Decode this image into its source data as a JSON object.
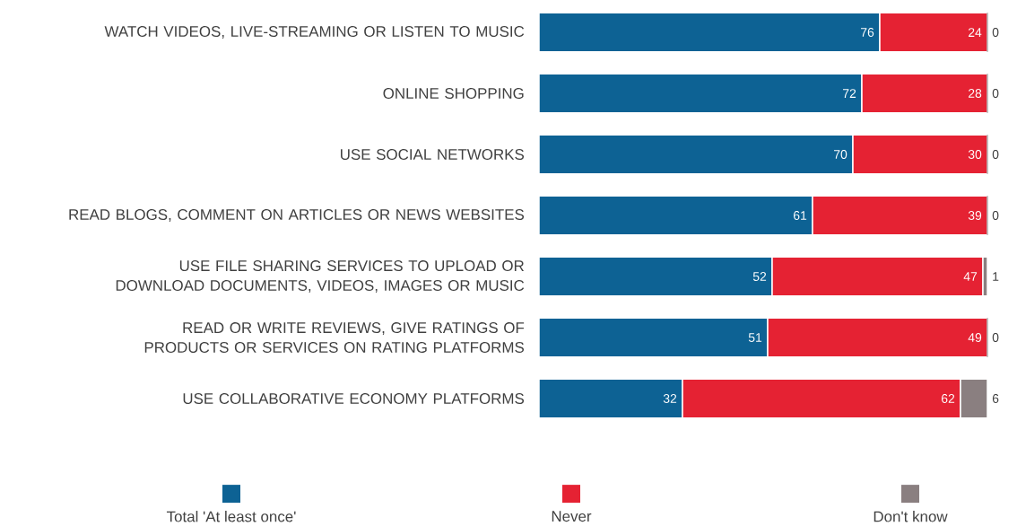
{
  "chart_data": {
    "type": "bar",
    "orientation": "horizontal",
    "stacked": true,
    "data_labels": true,
    "legend": "bottom",
    "categories": [
      "WATCH VIDEOS, LIVE-STREAMING OR LISTEN TO MUSIC",
      "ONLINE SHOPPING",
      "USE SOCIAL NETWORKS",
      "READ BLOGS, COMMENT ON ARTICLES OR NEWS WEBSITES",
      "USE FILE SHARING SERVICES TO UPLOAD OR DOWNLOAD DOCUMENTS, VIDEOS, IMAGES OR MUSIC",
      "READ OR WRITE REVIEWS, GIVE RATINGS OF PRODUCTS OR SERVICES ON RATING PLATFORMS",
      "USE COLLABORATIVE ECONOMY PLATFORMS"
    ],
    "series": [
      {
        "name": "Total 'At least once'",
        "color": "#0d6294",
        "values": [
          76,
          72,
          70,
          61,
          52,
          51,
          32
        ]
      },
      {
        "name": "Never",
        "color": "#e52233",
        "values": [
          24,
          28,
          30,
          39,
          47,
          49,
          62
        ]
      },
      {
        "name": "Don't know",
        "color": "#8a7f80",
        "values": [
          0,
          0,
          0,
          0,
          1,
          0,
          6
        ]
      }
    ]
  }
}
